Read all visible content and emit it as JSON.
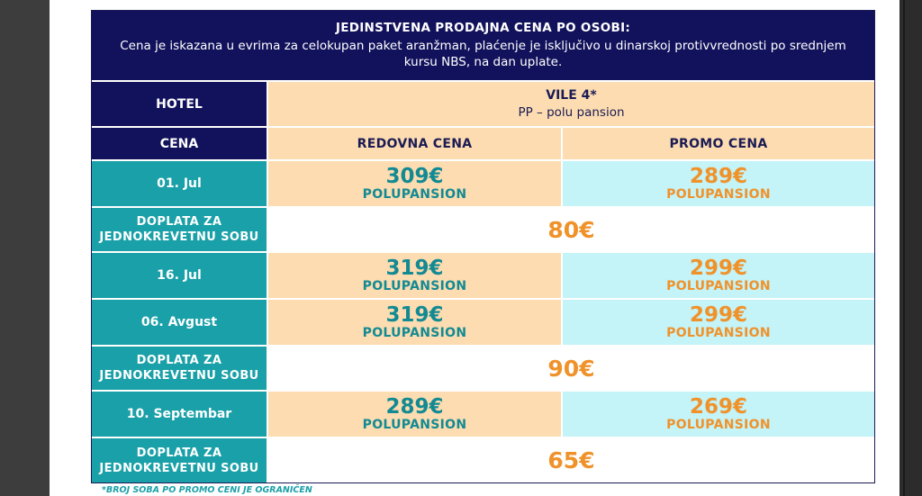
{
  "header": {
    "title": "JEDINSTVENA PRODAJNA CENA PO OSOBI:",
    "text": "Cena je iskazana u evrima za celokupan paket aranžman, plaćenje je isključivo u dinarskoj protivvrednosti po srednjem kursu NBS, na dan uplate."
  },
  "hotel_row": {
    "label": "HOTEL",
    "name": "VILE 4*",
    "board": "PP – polu pansion"
  },
  "cena_row": {
    "label": "CENA",
    "regular": "REDOVNA CENA",
    "promo": "PROMO CENA"
  },
  "rows": [
    {
      "date": "01. Jul",
      "regular_price": "309€",
      "regular_plan": "POLUPANSION",
      "promo_price": "289€",
      "promo_plan": "POLUPANSION"
    },
    {
      "supplement_label_1": "DOPLATA ZA",
      "supplement_label_2": "JEDNOKREVETNU SOBU",
      "supplement": "80€"
    },
    {
      "date": "16. Jul",
      "regular_price": "319€",
      "regular_plan": "POLUPANSION",
      "promo_price": "299€",
      "promo_plan": "POLUPANSION"
    },
    {
      "date": "06. Avgust",
      "regular_price": "319€",
      "regular_plan": "POLUPANSION",
      "promo_price": "299€",
      "promo_plan": "POLUPANSION"
    },
    {
      "supplement_label_1": "DOPLATA ZA",
      "supplement_label_2": "JEDNOKREVETNU SOBU",
      "supplement": "90€"
    },
    {
      "date": "10. Septembar",
      "regular_price": "289€",
      "regular_plan": "POLUPANSION",
      "promo_price": "269€",
      "promo_plan": "POLUPANSION"
    },
    {
      "supplement_label_1": "DOPLATA ZA",
      "supplement_label_2": "JEDNOKREVETNU SOBU",
      "supplement": "65€"
    }
  ],
  "footnote": "*BROJ SOBA PO PROMO CENI JE OGRANIČEN",
  "colors": {
    "navy": "#12125c",
    "teal": "#1aa0a8",
    "peach": "#fcdcb0",
    "cyan": "#c4f3f8",
    "orange": "#f0922a"
  }
}
